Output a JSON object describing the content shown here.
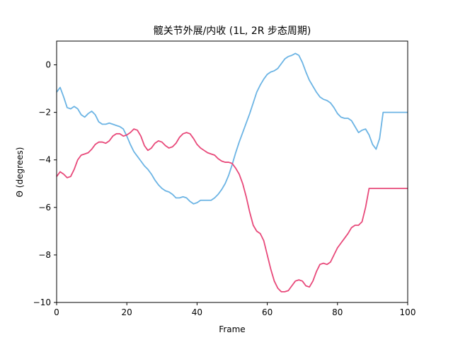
{
  "chart_data": {
    "type": "line",
    "title": "髋关节外展/内收 (1L, 2R 步态周期)",
    "xlabel": "Frame",
    "ylabel": "Θ (degrees)",
    "xlim": [
      0,
      100
    ],
    "ylim": [
      -10,
      1
    ],
    "xticks": [
      0,
      20,
      40,
      60,
      80,
      100
    ],
    "yticks": [
      0,
      -2,
      -4,
      -6,
      -8,
      -10
    ],
    "grid": false,
    "series": [
      {
        "color": "#6cb4e4",
        "x": [
          0,
          1,
          2,
          3,
          4,
          5,
          6,
          7,
          8,
          9,
          10,
          11,
          12,
          13,
          14,
          15,
          16,
          17,
          18,
          19,
          20,
          21,
          22,
          23,
          24,
          25,
          26,
          27,
          28,
          29,
          30,
          31,
          32,
          33,
          34,
          35,
          36,
          37,
          38,
          39,
          40,
          41,
          42,
          43,
          44,
          45,
          46,
          47,
          48,
          49,
          50,
          51,
          52,
          53,
          54,
          55,
          56,
          57,
          58,
          59,
          60,
          61,
          62,
          63,
          64,
          65,
          66,
          67,
          68,
          69,
          70,
          71,
          72,
          73,
          74,
          75,
          76,
          77,
          78,
          79,
          80,
          81,
          82,
          83,
          84,
          85,
          86,
          87,
          88,
          89,
          90,
          91,
          92,
          93,
          94,
          95,
          96,
          97,
          98,
          99,
          100
        ],
        "y": [
          -1.15,
          -0.95,
          -1.35,
          -1.8,
          -1.85,
          -1.75,
          -1.85,
          -2.1,
          -2.2,
          -2.05,
          -1.95,
          -2.1,
          -2.4,
          -2.5,
          -2.5,
          -2.45,
          -2.5,
          -2.55,
          -2.6,
          -2.7,
          -3.0,
          -3.35,
          -3.65,
          -3.85,
          -4.05,
          -4.25,
          -4.4,
          -4.6,
          -4.85,
          -5.05,
          -5.2,
          -5.3,
          -5.35,
          -5.45,
          -5.6,
          -5.6,
          -5.55,
          -5.6,
          -5.75,
          -5.85,
          -5.8,
          -5.7,
          -5.7,
          -5.7,
          -5.7,
          -5.6,
          -5.45,
          -5.25,
          -5.0,
          -4.65,
          -4.2,
          -3.7,
          -3.25,
          -2.85,
          -2.45,
          -2.05,
          -1.6,
          -1.15,
          -0.85,
          -0.6,
          -0.4,
          -0.3,
          -0.25,
          -0.15,
          0.05,
          0.25,
          0.35,
          0.4,
          0.48,
          0.4,
          0.1,
          -0.3,
          -0.65,
          -0.9,
          -1.15,
          -1.35,
          -1.45,
          -1.5,
          -1.6,
          -1.8,
          -2.05,
          -2.2,
          -2.25,
          -2.25,
          -2.35,
          -2.6,
          -2.85,
          -2.75,
          -2.7,
          -2.95,
          -3.35,
          -3.55,
          -3.1,
          -2.0,
          -2.0,
          -2.0,
          -2.0,
          -2.0,
          -2.0,
          -2.0,
          -2.0
        ]
      },
      {
        "color": "#e8497a",
        "x": [
          0,
          1,
          2,
          3,
          4,
          5,
          6,
          7,
          8,
          9,
          10,
          11,
          12,
          13,
          14,
          15,
          16,
          17,
          18,
          19,
          20,
          21,
          22,
          23,
          24,
          25,
          26,
          27,
          28,
          29,
          30,
          31,
          32,
          33,
          34,
          35,
          36,
          37,
          38,
          39,
          40,
          41,
          42,
          43,
          44,
          45,
          46,
          47,
          48,
          49,
          50,
          51,
          52,
          53,
          54,
          55,
          56,
          57,
          58,
          59,
          60,
          61,
          62,
          63,
          64,
          65,
          66,
          67,
          68,
          69,
          70,
          71,
          72,
          73,
          74,
          75,
          76,
          77,
          78,
          79,
          80,
          81,
          82,
          83,
          84,
          85,
          86,
          87,
          88,
          89,
          90,
          91,
          92,
          93,
          94,
          95,
          96,
          97,
          98,
          99,
          100
        ],
        "y": [
          -4.7,
          -4.5,
          -4.6,
          -4.75,
          -4.7,
          -4.4,
          -4.0,
          -3.8,
          -3.75,
          -3.7,
          -3.55,
          -3.35,
          -3.25,
          -3.25,
          -3.3,
          -3.2,
          -3.0,
          -2.9,
          -2.9,
          -3.0,
          -2.95,
          -2.85,
          -2.7,
          -2.75,
          -3.0,
          -3.4,
          -3.6,
          -3.5,
          -3.3,
          -3.2,
          -3.25,
          -3.4,
          -3.5,
          -3.45,
          -3.3,
          -3.05,
          -2.9,
          -2.85,
          -2.9,
          -3.1,
          -3.35,
          -3.5,
          -3.6,
          -3.7,
          -3.75,
          -3.8,
          -3.95,
          -4.05,
          -4.1,
          -4.1,
          -4.15,
          -4.35,
          -4.6,
          -5.0,
          -5.55,
          -6.2,
          -6.75,
          -7.0,
          -7.1,
          -7.4,
          -8.0,
          -8.6,
          -9.1,
          -9.4,
          -9.55,
          -9.55,
          -9.5,
          -9.3,
          -9.1,
          -9.05,
          -9.1,
          -9.3,
          -9.35,
          -9.1,
          -8.7,
          -8.4,
          -8.35,
          -8.4,
          -8.3,
          -8.0,
          -7.7,
          -7.5,
          -7.3,
          -7.1,
          -6.85,
          -6.75,
          -6.75,
          -6.6,
          -6.0,
          -5.2,
          -5.2,
          -5.2,
          -5.2,
          -5.2,
          -5.2,
          -5.2,
          -5.2,
          -5.2,
          -5.2,
          -5.2,
          -5.2
        ]
      }
    ]
  }
}
